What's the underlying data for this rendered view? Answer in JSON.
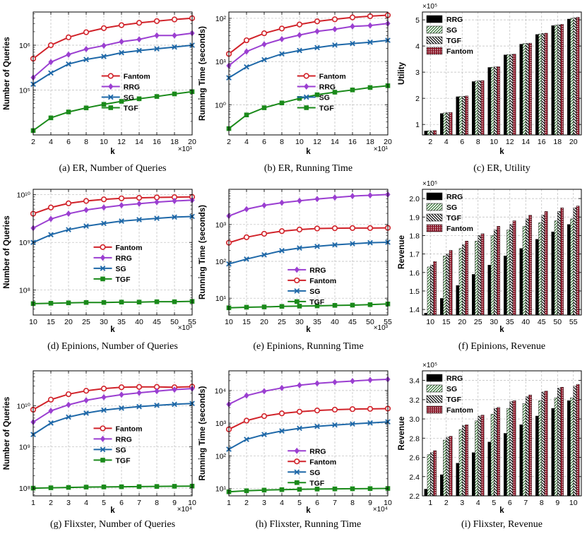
{
  "figure": {
    "background": "#ffffff",
    "grid_color": "#bbbbbb"
  },
  "line_series_styles": {
    "Fantom": {
      "color": "#d1232a",
      "marker": "circle"
    },
    "RRG": {
      "color": "#9b3fd1",
      "marker": "diamond"
    },
    "SG": {
      "color": "#1e68a8",
      "marker": "x"
    },
    "TGF": {
      "color": "#1a8a1a",
      "marker": "square"
    }
  },
  "bar_series_styles": {
    "RRG": {
      "pattern": "solid-black"
    },
    "SG": {
      "pattern": "green-hatch"
    },
    "TGF": {
      "pattern": "black-hatch"
    },
    "Fantom": {
      "pattern": "red-dots"
    }
  },
  "chart_data": [
    {
      "id": "a",
      "type": "line",
      "yscale": "log",
      "caption": "(a) ER, Number of Queries",
      "xlabel": "k",
      "ylabel": "Number of Queries",
      "x": [
        2,
        4,
        6,
        8,
        10,
        12,
        14,
        16,
        18,
        20
      ],
      "xlim": [
        2,
        20
      ],
      "ylim": [
        10000,
        5500000
      ],
      "xticks": [
        2,
        4,
        6,
        8,
        10,
        12,
        14,
        16,
        18,
        20
      ],
      "xtick_labels": [
        "2",
        "4",
        "6",
        "8",
        "10",
        "12",
        "14",
        "16",
        "18",
        "20"
      ],
      "x_multiplier": "×10¹",
      "yticks": [
        100000,
        1000000
      ],
      "ytick_labels": [
        "10⁵",
        "10⁶"
      ],
      "legend_position": "center-right",
      "legend_order": [
        "Fantom",
        "RRG",
        "SG",
        "TGF"
      ],
      "series": [
        {
          "name": "Fantom",
          "values": [
            500000,
            1000000,
            1500000,
            1950000,
            2400000,
            2800000,
            3150000,
            3450000,
            3750000,
            4000000
          ]
        },
        {
          "name": "RRG",
          "values": [
            190000,
            420000,
            620000,
            820000,
            980000,
            1200000,
            1350000,
            1650000,
            1650000,
            1850000
          ]
        },
        {
          "name": "SG",
          "values": [
            135000,
            240000,
            380000,
            480000,
            560000,
            680000,
            760000,
            830000,
            910000,
            1000000
          ]
        },
        {
          "name": "TGF",
          "values": [
            12500,
            24000,
            32500,
            40000,
            48000,
            56000,
            64000,
            72000,
            82000,
            92000
          ]
        }
      ]
    },
    {
      "id": "b",
      "type": "line",
      "yscale": "log",
      "caption": "(b) ER, Running Time",
      "xlabel": "k",
      "ylabel": "Running Time (seconds)",
      "x": [
        2,
        4,
        6,
        8,
        10,
        12,
        14,
        16,
        18,
        20
      ],
      "xlim": [
        2,
        20
      ],
      "ylim": [
        0.2,
        140
      ],
      "xticks": [
        2,
        4,
        6,
        8,
        10,
        12,
        14,
        16,
        18,
        20
      ],
      "xtick_labels": [
        "2",
        "4",
        "6",
        "8",
        "10",
        "12",
        "14",
        "16",
        "18",
        "20"
      ],
      "x_multiplier": "×10¹",
      "yticks": [
        1,
        10,
        100
      ],
      "ytick_labels": [
        "10⁰",
        "10¹",
        "10²"
      ],
      "legend_position": "center-right",
      "legend_order": [
        "Fantom",
        "RRG",
        "SG",
        "TGF"
      ],
      "series": [
        {
          "name": "Fantom",
          "values": [
            15,
            31,
            45,
            58,
            72,
            85,
            95,
            105,
            112,
            118
          ]
        },
        {
          "name": "RRG",
          "values": [
            8,
            17,
            25,
            33,
            41,
            50,
            56,
            65,
            68,
            76
          ]
        },
        {
          "name": "SG",
          "values": [
            4.2,
            7.5,
            11,
            15,
            18,
            21,
            24,
            26,
            28,
            31
          ]
        },
        {
          "name": "TGF",
          "values": [
            0.28,
            0.58,
            0.85,
            1.1,
            1.4,
            1.7,
            1.95,
            2.2,
            2.5,
            2.75
          ]
        }
      ]
    },
    {
      "id": "c",
      "type": "bar",
      "caption": "(c) ER, Utility",
      "xlabel": "k",
      "ylabel": "Utility",
      "y_multiplier": "×10⁵",
      "categories": [
        "2",
        "4",
        "6",
        "8",
        "10",
        "12",
        "14",
        "16",
        "18",
        "20"
      ],
      "ylim": [
        0.6,
        5.3
      ],
      "yticks": [
        1,
        2,
        3,
        4,
        5
      ],
      "ytick_labels": [
        "1",
        "2",
        "3",
        "4",
        "5"
      ],
      "legend_position": "top-left",
      "legend_order": [
        "RRG",
        "SG",
        "TGF",
        "Fantom"
      ],
      "series": [
        {
          "name": "RRG",
          "values": [
            0.75,
            1.42,
            2.06,
            2.64,
            3.18,
            3.66,
            4.07,
            4.44,
            4.78,
            5.03
          ]
        },
        {
          "name": "SG",
          "values": [
            0.76,
            1.44,
            2.07,
            2.66,
            3.19,
            3.67,
            4.09,
            4.46,
            4.8,
            5.06
          ]
        },
        {
          "name": "TGF",
          "values": [
            0.76,
            1.45,
            2.08,
            2.67,
            3.2,
            3.68,
            4.1,
            4.48,
            4.81,
            5.08
          ]
        },
        {
          "name": "Fantom",
          "values": [
            0.77,
            1.46,
            2.09,
            2.68,
            3.21,
            3.69,
            4.11,
            4.49,
            4.83,
            5.1
          ]
        }
      ]
    },
    {
      "id": "d",
      "type": "line",
      "yscale": "log",
      "caption": "(d) Epinions, Number of Queries",
      "xlabel": "k",
      "ylabel": "Number of Queries",
      "x": [
        10,
        15,
        20,
        25,
        30,
        35,
        40,
        45,
        50,
        55
      ],
      "xlim": [
        10,
        55
      ],
      "ylim": [
        30000000,
        13000000000
      ],
      "xticks": [
        10,
        15,
        20,
        25,
        30,
        35,
        40,
        45,
        50,
        55
      ],
      "xtick_labels": [
        "10",
        "15",
        "20",
        "25",
        "30",
        "35",
        "40",
        "45",
        "50",
        "55"
      ],
      "x_multiplier": "×10³",
      "yticks": [
        100000000,
        1000000000,
        10000000000
      ],
      "ytick_labels": [
        "10⁸",
        "10⁹",
        "10¹⁰"
      ],
      "legend_position": "center",
      "legend_order": [
        "Fantom",
        "RRG",
        "SG",
        "TGF"
      ],
      "series": [
        {
          "name": "Fantom",
          "values": [
            4000000000,
            5400000000,
            6600000000,
            7400000000,
            8000000000,
            8400000000,
            8600000000,
            8800000000,
            8900000000,
            9000000000
          ]
        },
        {
          "name": "RRG",
          "values": [
            2000000000,
            3100000000,
            4000000000,
            4800000000,
            5400000000,
            6000000000,
            6500000000,
            7000000000,
            7400000000,
            7700000000
          ]
        },
        {
          "name": "SG",
          "values": [
            1000000000,
            1450000000,
            1850000000,
            2200000000,
            2500000000,
            2800000000,
            3000000000,
            3200000000,
            3400000000,
            3500000000
          ]
        },
        {
          "name": "TGF",
          "values": [
            52000000,
            53000000,
            54000000,
            55000000,
            55000000,
            56000000,
            56000000,
            57000000,
            57000000,
            58000000
          ]
        }
      ]
    },
    {
      "id": "e",
      "type": "line",
      "yscale": "log",
      "caption": "(e) Epinions, Running Time",
      "xlabel": "k",
      "ylabel": "Running Time (seconds)",
      "x": [
        10,
        15,
        20,
        25,
        30,
        35,
        40,
        45,
        50,
        55
      ],
      "xlim": [
        10,
        55
      ],
      "ylim": [
        3.5,
        9000
      ],
      "xticks": [
        10,
        15,
        20,
        25,
        30,
        35,
        40,
        45,
        50,
        55
      ],
      "xtick_labels": [
        "10",
        "15",
        "20",
        "25",
        "30",
        "35",
        "40",
        "45",
        "50",
        "55"
      ],
      "x_multiplier": "×10³",
      "yticks": [
        10,
        100,
        1000
      ],
      "ytick_labels": [
        "10¹",
        "10²",
        "10³"
      ],
      "legend_position": "lower-center",
      "legend_order": [
        "RRG",
        "Fantom",
        "SG",
        "TGF"
      ],
      "series": [
        {
          "name": "RRG",
          "values": [
            1700,
            2600,
            3300,
            3900,
            4400,
            4900,
            5400,
            5900,
            6200,
            6500
          ]
        },
        {
          "name": "Fantom",
          "values": [
            320,
            450,
            560,
            660,
            730,
            780,
            790,
            800,
            800,
            810
          ]
        },
        {
          "name": "SG",
          "values": [
            85,
            115,
            150,
            195,
            230,
            255,
            280,
            300,
            320,
            330
          ]
        },
        {
          "name": "TGF",
          "values": [
            5.5,
            5.7,
            5.8,
            6.0,
            6.1,
            6.2,
            6.4,
            6.5,
            6.7,
            7.0
          ]
        }
      ]
    },
    {
      "id": "f",
      "type": "bar",
      "caption": "(f) Epinions, Revenue",
      "xlabel": "k",
      "ylabel": "Revenue",
      "y_multiplier": "×10⁵",
      "categories": [
        "10",
        "15",
        "20",
        "25",
        "30",
        "35",
        "40",
        "45",
        "50",
        "55"
      ],
      "ylim": [
        1.37,
        2.05
      ],
      "yticks": [
        1.4,
        1.5,
        1.6,
        1.7,
        1.8,
        1.9,
        2.0
      ],
      "ytick_labels": [
        "1.4",
        "1.5",
        "1.6",
        "1.7",
        "1.8",
        "1.9",
        "2.0"
      ],
      "legend_position": "top-left",
      "legend_order": [
        "RRG",
        "SG",
        "TGF",
        "Fantom"
      ],
      "series": [
        {
          "name": "RRG",
          "values": [
            1.38,
            1.46,
            1.53,
            1.59,
            1.64,
            1.69,
            1.73,
            1.78,
            1.82,
            1.86
          ]
        },
        {
          "name": "SG",
          "values": [
            1.63,
            1.69,
            1.73,
            1.77,
            1.8,
            1.83,
            1.85,
            1.87,
            1.88,
            1.89
          ]
        },
        {
          "name": "TGF",
          "values": [
            1.64,
            1.7,
            1.75,
            1.8,
            1.83,
            1.86,
            1.89,
            1.91,
            1.93,
            1.95
          ]
        },
        {
          "name": "Fantom",
          "values": [
            1.66,
            1.72,
            1.77,
            1.81,
            1.85,
            1.88,
            1.91,
            1.93,
            1.95,
            1.96
          ]
        }
      ]
    },
    {
      "id": "g",
      "type": "line",
      "yscale": "log",
      "caption": "(g) Flixster, Number of Queries",
      "xlabel": "k",
      "ylabel": "Number of Queries",
      "x": [
        1,
        2,
        3,
        4,
        5,
        6,
        7,
        8,
        9,
        10
      ],
      "xlim": [
        1,
        10
      ],
      "ylim": [
        65000000,
        70000000000
      ],
      "xticks": [
        1,
        2,
        3,
        4,
        5,
        6,
        7,
        8,
        9,
        10
      ],
      "xtick_labels": [
        "1",
        "2",
        "3",
        "4",
        "5",
        "6",
        "7",
        "8",
        "9",
        "10"
      ],
      "x_multiplier": "×10⁴",
      "yticks": [
        100000000,
        1000000000,
        10000000000
      ],
      "ytick_labels": [
        "10⁸",
        "10⁹",
        "10¹⁰"
      ],
      "legend_position": "center",
      "legend_order": [
        "Fantom",
        "RRG",
        "SG",
        "TGF"
      ],
      "series": [
        {
          "name": "Fantom",
          "values": [
            8000000000,
            14000000000,
            19000000000,
            23000000000,
            26000000000,
            28000000000,
            28500000000,
            28500000000,
            28000000000,
            29000000000
          ]
        },
        {
          "name": "RRG",
          "values": [
            4000000000,
            7500000000,
            10500000000,
            13500000000,
            16000000000,
            18500000000,
            20500000000,
            22500000000,
            24500000000,
            26000000000
          ]
        },
        {
          "name": "SG",
          "values": [
            2000000000,
            3800000000,
            5300000000,
            6600000000,
            7800000000,
            8700000000,
            9500000000,
            10200000000,
            10800000000,
            11300000000
          ]
        },
        {
          "name": "TGF",
          "values": [
            100000000,
            102000000,
            104000000,
            106000000,
            107000000,
            108000000,
            109000000,
            110000000,
            111000000,
            112000000
          ]
        }
      ]
    },
    {
      "id": "h",
      "type": "line",
      "yscale": "log",
      "caption": "(h) Flixster, Running Time",
      "xlabel": "k",
      "ylabel": "Running Time (seconds)",
      "x": [
        1,
        2,
        3,
        4,
        5,
        6,
        7,
        8,
        9,
        10
      ],
      "xlim": [
        1,
        10
      ],
      "ylim": [
        6,
        40000
      ],
      "xticks": [
        1,
        2,
        3,
        4,
        5,
        6,
        7,
        8,
        9,
        10
      ],
      "xtick_labels": [
        "1",
        "2",
        "3",
        "4",
        "5",
        "6",
        "7",
        "8",
        "9",
        "10"
      ],
      "x_multiplier": "×10⁴",
      "yticks": [
        10,
        100,
        1000,
        10000
      ],
      "ytick_labels": [
        "10¹",
        "10²",
        "10³",
        "10⁴"
      ],
      "legend_position": "lower-center",
      "legend_order": [
        "RRG",
        "Fantom",
        "SG",
        "TGF"
      ],
      "series": [
        {
          "name": "RRG",
          "values": [
            3800,
            7000,
            9500,
            12000,
            14500,
            16500,
            18000,
            19500,
            21000,
            22000
          ]
        },
        {
          "name": "Fantom",
          "values": [
            650,
            1200,
            1650,
            2000,
            2250,
            2450,
            2600,
            2700,
            2750,
            2800
          ]
        },
        {
          "name": "SG",
          "values": [
            160,
            320,
            450,
            580,
            700,
            800,
            880,
            950,
            1020,
            1100
          ]
        },
        {
          "name": "TGF",
          "values": [
            8.0,
            8.6,
            9.0,
            9.3,
            9.5,
            9.7,
            9.8,
            9.9,
            10.0,
            10.1
          ]
        }
      ]
    },
    {
      "id": "i",
      "type": "bar",
      "caption": "(i) Flixster, Revenue",
      "xlabel": "k",
      "ylabel": "Revenue",
      "y_multiplier": "×10⁵",
      "categories": [
        "1",
        "2",
        "3",
        "4",
        "5",
        "6",
        "7",
        "8",
        "9",
        "10"
      ],
      "ylim": [
        2.2,
        3.5
      ],
      "yticks": [
        2.2,
        2.4,
        2.6,
        2.8,
        3.0,
        3.2,
        3.4
      ],
      "ytick_labels": [
        "2.2",
        "2.4",
        "2.6",
        "2.8",
        "3.0",
        "3.2",
        "3.4"
      ],
      "legend_position": "top-left",
      "legend_order": [
        "RRG",
        "SG",
        "TGF",
        "Fantom"
      ],
      "series": [
        {
          "name": "RRG",
          "values": [
            2.27,
            2.42,
            2.54,
            2.65,
            2.76,
            2.85,
            2.94,
            3.03,
            3.11,
            3.19
          ]
        },
        {
          "name": "SG",
          "values": [
            2.63,
            2.78,
            2.89,
            2.98,
            3.05,
            3.11,
            3.16,
            3.19,
            3.22,
            3.22
          ]
        },
        {
          "name": "TGF",
          "values": [
            2.65,
            2.81,
            2.93,
            3.03,
            3.11,
            3.18,
            3.23,
            3.28,
            3.32,
            3.34
          ]
        },
        {
          "name": "Fantom",
          "values": [
            2.67,
            2.82,
            2.94,
            3.04,
            3.12,
            3.19,
            3.25,
            3.29,
            3.33,
            3.36
          ]
        }
      ]
    }
  ]
}
